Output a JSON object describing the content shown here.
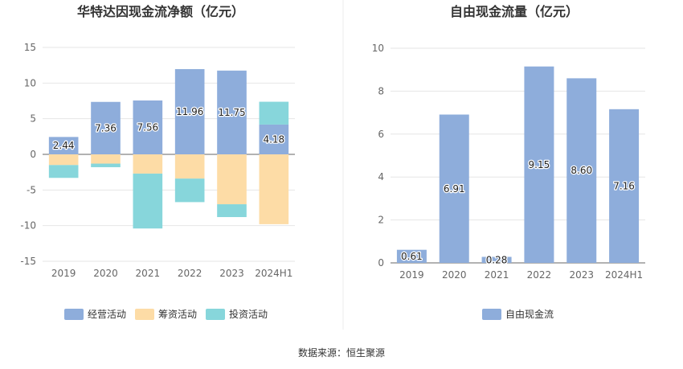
{
  "source_label": "数据来源：恒生聚源",
  "chart_data": [
    {
      "type": "bar",
      "stacked": true,
      "title": "华特达因现金流净额（亿元）",
      "categories": [
        "2019",
        "2020",
        "2021",
        "2022",
        "2023",
        "2024H1"
      ],
      "ylim": [
        -15,
        15
      ],
      "yticks": [
        15,
        10,
        5,
        0,
        -5,
        -10,
        -15
      ],
      "grid": true,
      "legend_position": "bottom",
      "series": [
        {
          "name": "经营活动",
          "color": "#8eaddb",
          "values": [
            2.44,
            7.36,
            7.56,
            11.96,
            11.75,
            4.18
          ],
          "labels": [
            "2.44",
            "7.36",
            "7.56",
            "11.96",
            "11.75",
            "4.18"
          ]
        },
        {
          "name": "筹资活动",
          "color": "#fddca6",
          "values": [
            -1.5,
            -1.3,
            -2.7,
            -3.4,
            -7.0,
            -9.8
          ]
        },
        {
          "name": "投资活动",
          "color": "#87d6db",
          "values": [
            -1.8,
            -0.5,
            -7.7,
            -3.3,
            -1.8,
            3.2
          ]
        }
      ]
    },
    {
      "type": "bar",
      "title": "自由现金流量（亿元）",
      "categories": [
        "2019",
        "2020",
        "2021",
        "2022",
        "2023",
        "2024H1"
      ],
      "ylim": [
        0,
        10
      ],
      "yticks": [
        10,
        8,
        6,
        4,
        2,
        0
      ],
      "grid": true,
      "legend_position": "bottom",
      "series": [
        {
          "name": "自由现金流",
          "color": "#8eaddb",
          "values": [
            0.61,
            6.91,
            0.28,
            9.15,
            8.6,
            7.16
          ],
          "labels": [
            "0.61",
            "6.91",
            "0.28",
            "9.15",
            "8.60",
            "7.16"
          ]
        }
      ]
    }
  ]
}
